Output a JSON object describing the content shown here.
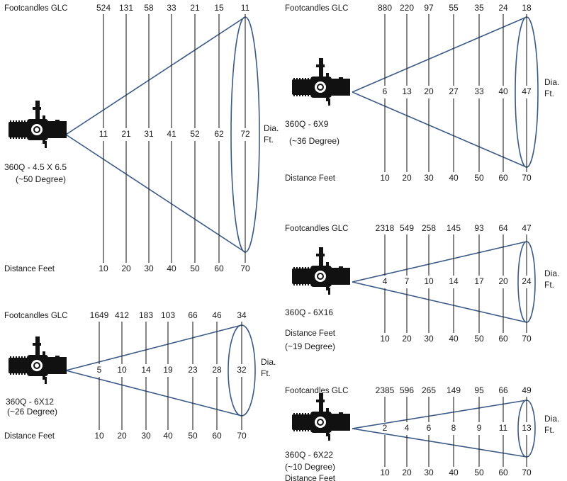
{
  "panels": [
    {
      "id": "p50",
      "model": "360Q - 4.5 X 6.5",
      "angle": "(~50 Degree)",
      "footcandles_label": "Footcandles GLC",
      "distance_label": "Distance Feet",
      "diameter_label": [
        "Dia.",
        "Ft."
      ],
      "distances": [
        "10",
        "20",
        "30",
        "40",
        "50",
        "60",
        "70"
      ],
      "footcandles": [
        "524",
        "131",
        "58",
        "33",
        "21",
        "15",
        "11"
      ],
      "diameters": [
        "11",
        "21",
        "31",
        "41",
        "52",
        "62",
        "72"
      ]
    },
    {
      "id": "p36",
      "model": "360Q - 6X9",
      "angle": "(~36 Degree)",
      "footcandles_label": "Footcandles GLC",
      "distance_label": "Distance Feet",
      "diameter_label": [
        "Dia.",
        "Ft."
      ],
      "distances": [
        "10",
        "20",
        "30",
        "40",
        "50",
        "60",
        "70"
      ],
      "footcandles": [
        "880",
        "220",
        "97",
        "55",
        "35",
        "24",
        "18"
      ],
      "diameters": [
        "6",
        "13",
        "20",
        "27",
        "33",
        "40",
        "47"
      ]
    },
    {
      "id": "p19",
      "model": "360Q - 6X16",
      "angle": "(~19 Degree)",
      "footcandles_label": "Footcandles GLC",
      "distance_label": "Distance Feet",
      "diameter_label": [
        "Dia.",
        "Ft."
      ],
      "distances": [
        "10",
        "20",
        "30",
        "40",
        "50",
        "60",
        "70"
      ],
      "footcandles": [
        "2318",
        "549",
        "258",
        "145",
        "93",
        "64",
        "47"
      ],
      "diameters": [
        "4",
        "7",
        "10",
        "14",
        "17",
        "20",
        "24"
      ]
    },
    {
      "id": "p26",
      "model": "360Q - 6X12",
      "angle": "(~26 Degree)",
      "footcandles_label": "Footcandles GLC",
      "distance_label": "Distance Feet",
      "diameter_label": [
        "Dia.",
        "Ft."
      ],
      "distances": [
        "10",
        "20",
        "30",
        "40",
        "50",
        "60",
        "70"
      ],
      "footcandles": [
        "1649",
        "412",
        "183",
        "103",
        "66",
        "46",
        "34"
      ],
      "diameters": [
        "5",
        "10",
        "14",
        "19",
        "23",
        "28",
        "32"
      ]
    },
    {
      "id": "p10",
      "model": "360Q - 6X22",
      "angle": "(~10 Degree)",
      "footcandles_label": "Footcandles GLC",
      "distance_label": "Distance Feet",
      "diameter_label": [
        "Dia.",
        "Ft."
      ],
      "distances": [
        "10",
        "20",
        "30",
        "40",
        "50",
        "60",
        "70"
      ],
      "footcandles": [
        "2385",
        "596",
        "265",
        "149",
        "95",
        "66",
        "49"
      ],
      "diameters": [
        "2",
        "4",
        "6",
        "8",
        "9",
        "11",
        "13"
      ]
    }
  ],
  "colors": {
    "beam": "#3b5a86",
    "text": "#1a1a1a",
    "fixture": "#111111"
  }
}
